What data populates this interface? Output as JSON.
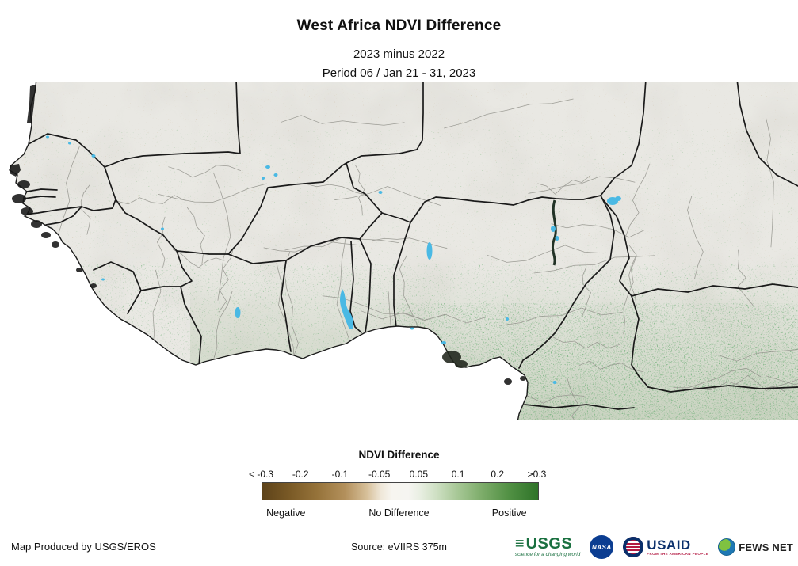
{
  "header": {
    "title": "West Africa NDVI Difference",
    "subtitle1": "2023 minus 2022",
    "subtitle2": "Period 06 / Jan 21 - 31, 2023"
  },
  "legend": {
    "title": "NDVI Difference",
    "ticks": [
      "< -0.3",
      "-0.2",
      "-0.1",
      "-0.05",
      "0.05",
      "0.1",
      "0.2",
      ">0.3"
    ],
    "qualitative": [
      "Negative",
      "No Difference",
      "Positive"
    ],
    "colorbar_stops": [
      "#5e431a",
      "#96733a",
      "#d7c09a",
      "#f7f5f0",
      "#cfe0c4",
      "#7bab68",
      "#2f7329"
    ]
  },
  "footer": {
    "produced_by": "Map Produced by USGS/EROS",
    "source": "Source: eVIIRS 375m",
    "logos": {
      "usgs": {
        "name": "USGS",
        "tagline": "science for a changing world"
      },
      "nasa": {
        "name": "NASA"
      },
      "usaid": {
        "name": "USAID",
        "tagline": "FROM THE AMERICAN PEOPLE"
      },
      "fewsnet": {
        "name": "FEWS NET"
      }
    }
  },
  "map": {
    "colors": {
      "land_gray": "#e9e8e3",
      "ocean_white": "#ffffff",
      "border_black": "#1a1a1a",
      "admin_gray": "#93938c",
      "water_cyan": "#4ab9e4",
      "negative_brown": "#6e4f1d",
      "positive_green": "#3e7e35",
      "usgs_green": "#1a7040",
      "nasa_blue": "#0b3d91",
      "usaid_blue": "#0a2f6b",
      "usaid_red": "#b31942"
    }
  }
}
